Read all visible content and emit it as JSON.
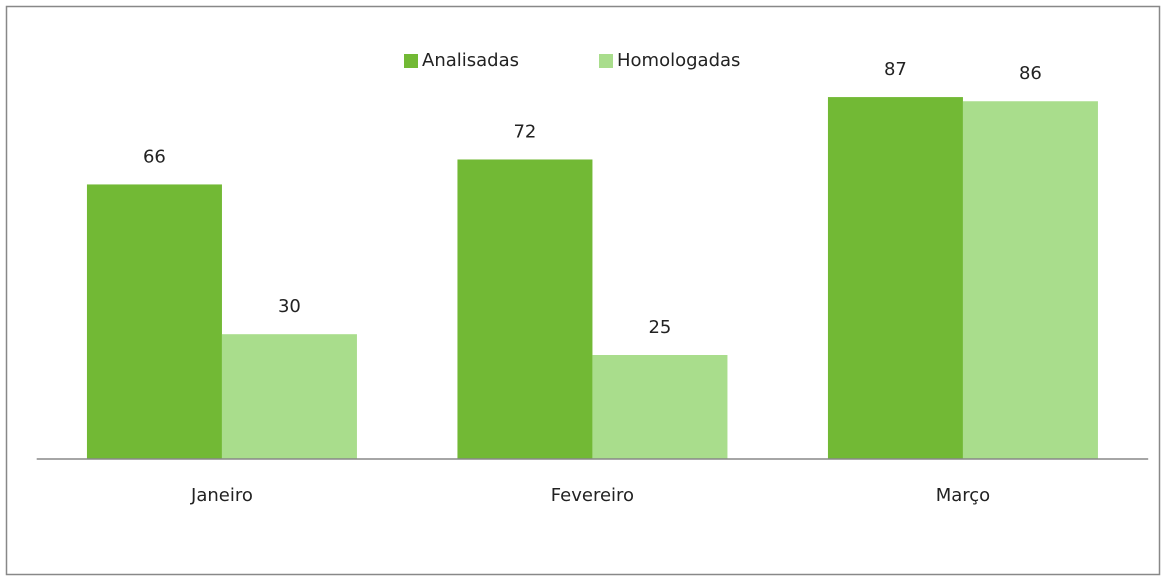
{
  "chart_data": {
    "type": "bar",
    "categories": [
      "Janeiro",
      "Fevereiro",
      "Março"
    ],
    "series": [
      {
        "name": "Analisadas",
        "color": "#72b935",
        "values": [
          66,
          72,
          87
        ]
      },
      {
        "name": "Homologadas",
        "color": "#a9dd8c",
        "values": [
          30,
          25,
          86
        ]
      }
    ],
    "ylim": [
      0,
      100
    ],
    "legend": "top"
  }
}
